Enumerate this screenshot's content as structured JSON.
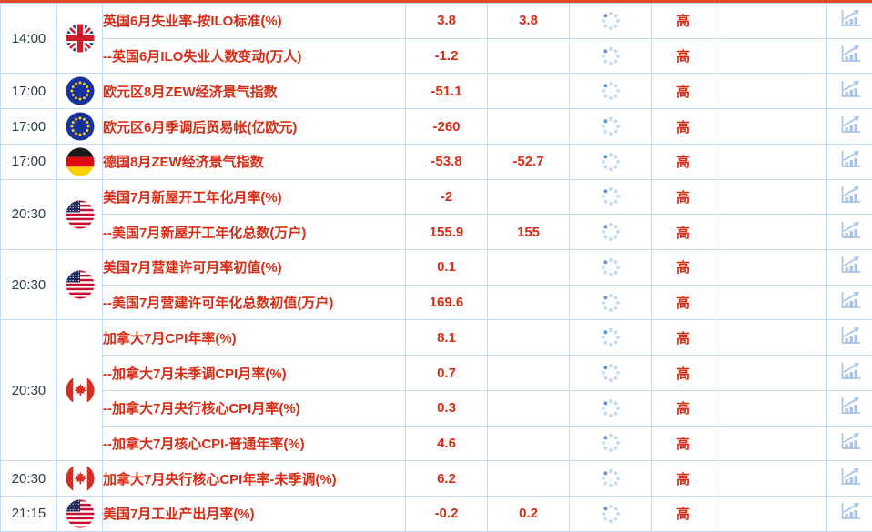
{
  "colors": {
    "top_accent": "#e04b25",
    "grid_border": "#c3daf2",
    "event_red": "#d92c15",
    "time_text": "#2e3a48",
    "icon_blue": "#a7c3e6"
  },
  "icons": {
    "spinner": "loading-spinner-icon",
    "chart": "bar-chart-trend-icon",
    "flags": {
      "uk": "uk-flag-icon",
      "eu": "eu-flag-icon",
      "de": "germany-flag-icon",
      "us": "us-flag-icon",
      "ca": "canada-flag-icon"
    }
  },
  "table": {
    "groups": [
      {
        "time": "14:00",
        "country": "uk",
        "rows": [
          {
            "name": "英国6月失业率-按ILO标准(%)",
            "actual": "3.8",
            "forecast": "3.8",
            "importance": "高"
          },
          {
            "name": "--英国6月ILO失业人数变动(万人)",
            "actual": "-1.2",
            "forecast": "",
            "importance": "高"
          }
        ]
      },
      {
        "time": "17:00",
        "country": "eu",
        "rows": [
          {
            "name": "欧元区8月ZEW经济景气指数",
            "actual": "-51.1",
            "forecast": "",
            "importance": "高"
          }
        ]
      },
      {
        "time": "17:00",
        "country": "eu",
        "rows": [
          {
            "name": "欧元区6月季调后贸易帐(亿欧元)",
            "actual": "-260",
            "forecast": "",
            "importance": "高"
          }
        ]
      },
      {
        "time": "17:00",
        "country": "de",
        "rows": [
          {
            "name": "德国8月ZEW经济景气指数",
            "actual": "-53.8",
            "forecast": "-52.7",
            "importance": "高"
          }
        ]
      },
      {
        "time": "20:30",
        "country": "us",
        "rows": [
          {
            "name": "美国7月新屋开工年化月率(%)",
            "actual": "-2",
            "forecast": "",
            "importance": "高"
          },
          {
            "name": "--美国7月新屋开工年化总数(万户)",
            "actual": "155.9",
            "forecast": "155",
            "importance": "高"
          }
        ]
      },
      {
        "time": "20:30",
        "country": "us",
        "rows": [
          {
            "name": "美国7月营建许可月率初值(%)",
            "actual": "0.1",
            "forecast": "",
            "importance": "高"
          },
          {
            "name": "--美国7月营建许可年化总数初值(万户)",
            "actual": "169.6",
            "forecast": "",
            "importance": "高"
          }
        ]
      },
      {
        "time": "20:30",
        "country": "ca",
        "rows": [
          {
            "name": "加拿大7月CPI年率(%)",
            "actual": "8.1",
            "forecast": "",
            "importance": "高"
          },
          {
            "name": "--加拿大7月未季调CPI月率(%)",
            "actual": "0.7",
            "forecast": "",
            "importance": "高"
          },
          {
            "name": "--加拿大7月央行核心CPI月率(%)",
            "actual": "0.3",
            "forecast": "",
            "importance": "高"
          },
          {
            "name": "--加拿大7月核心CPI-普通年率(%)",
            "actual": "4.6",
            "forecast": "",
            "importance": "高"
          }
        ]
      },
      {
        "time": "20:30",
        "country": "ca",
        "rows": [
          {
            "name": "加拿大7月央行核心CPI年率-未季调(%)",
            "actual": "6.2",
            "forecast": "",
            "importance": "高"
          }
        ]
      },
      {
        "time": "21:15",
        "country": "us",
        "rows": [
          {
            "name": "美国7月工业产出月率(%)",
            "actual": "-0.2",
            "forecast": "0.2",
            "importance": "高"
          }
        ]
      }
    ]
  }
}
